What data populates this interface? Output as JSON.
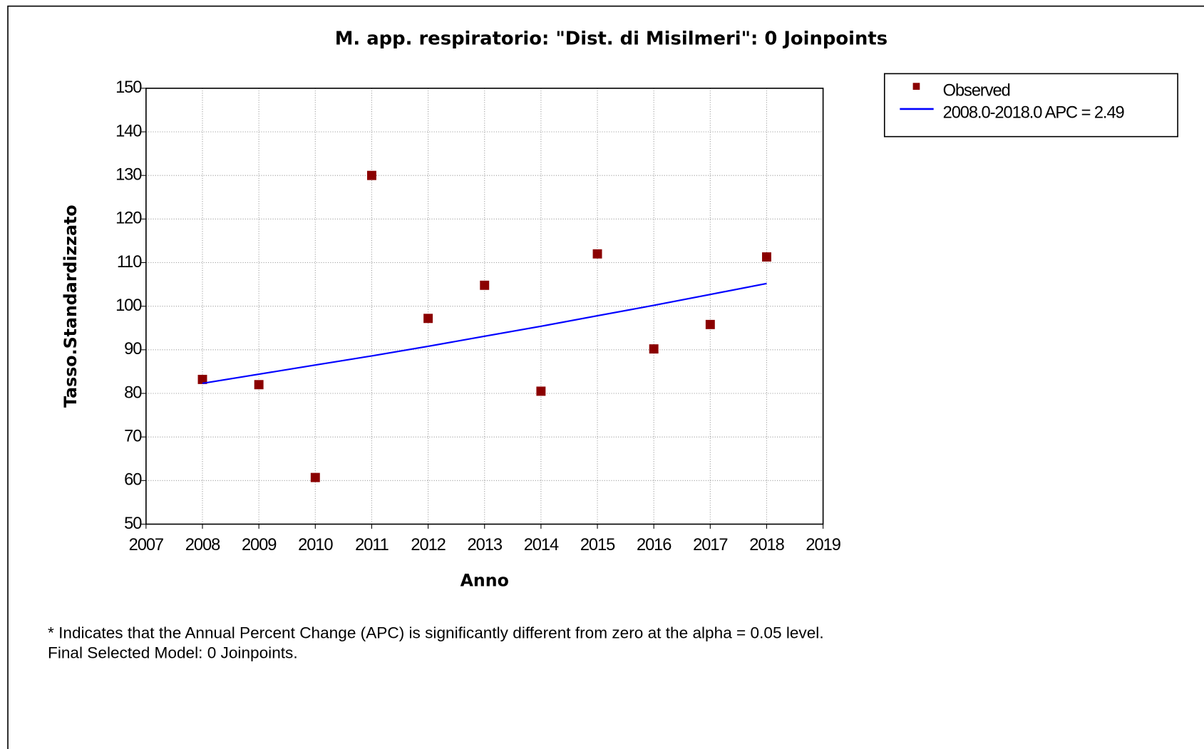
{
  "chart_data": {
    "type": "scatter",
    "title": "M. app. respiratorio: \"Dist. di Misilmeri\": 0 Joinpoints",
    "x_label": "Anno",
    "y_label": "Tasso.Standardizzato",
    "x": [
      2008,
      2009,
      2010,
      2011,
      2012,
      2013,
      2014,
      2015,
      2016,
      2017,
      2018
    ],
    "series": [
      {
        "name": "Observed",
        "color": "#8b0000",
        "kind": "points",
        "values": [
          83.2,
          82.0,
          60.7,
          130.0,
          97.2,
          104.8,
          80.5,
          112.0,
          90.2,
          95.8,
          111.3
        ]
      },
      {
        "name": "2008.0-2018.0 APC  = 2.49",
        "color": "#0000ff",
        "kind": "line",
        "values": [
          82.3,
          84.4,
          86.5,
          88.6,
          90.8,
          93.1,
          95.4,
          97.8,
          100.2,
          102.7,
          105.2
        ]
      }
    ],
    "xlim": [
      2007,
      2019
    ],
    "xticks": [
      2007,
      2008,
      2009,
      2010,
      2011,
      2012,
      2013,
      2014,
      2015,
      2016,
      2017,
      2018,
      2019
    ],
    "ylim": [
      50,
      150
    ],
    "yticks": [
      50,
      60,
      70,
      80,
      90,
      100,
      110,
      120,
      130,
      140,
      150
    ],
    "grid": true,
    "legend": "outside-right",
    "notes": [
      "* Indicates that the Annual Percent Change (APC) is significantly different from zero at the alpha = 0.05 level.",
      "Final Selected Model: 0 Joinpoints."
    ]
  }
}
